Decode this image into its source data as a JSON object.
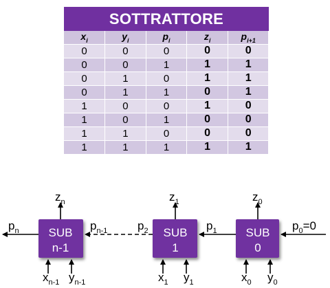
{
  "table": {
    "title": "SOTTRATTORE",
    "headers": [
      {
        "base": "x",
        "sub": "i"
      },
      {
        "base": "y",
        "sub": "i"
      },
      {
        "base": "p",
        "sub": "i"
      },
      {
        "base": "z",
        "sub": "i"
      },
      {
        "base": "p",
        "sub": "i+1"
      }
    ],
    "rows": [
      [
        "0",
        "0",
        "0",
        "0",
        "0"
      ],
      [
        "0",
        "0",
        "1",
        "1",
        "1"
      ],
      [
        "0",
        "1",
        "0",
        "1",
        "1"
      ],
      [
        "0",
        "1",
        "1",
        "0",
        "1"
      ],
      [
        "1",
        "0",
        "0",
        "1",
        "0"
      ],
      [
        "1",
        "0",
        "1",
        "0",
        "0"
      ],
      [
        "1",
        "1",
        "0",
        "0",
        "0"
      ],
      [
        "1",
        "1",
        "1",
        "1",
        "1"
      ]
    ]
  },
  "diagram": {
    "box_color": "#7030a0",
    "blocks": [
      {
        "line1": "SUB",
        "line2": "n-1",
        "z": {
          "base": "z",
          "sub": "n"
        },
        "x": {
          "base": "x",
          "sub": "n-1"
        },
        "y": {
          "base": "y",
          "sub": "n-1"
        }
      },
      {
        "line1": "SUB",
        "line2": "1",
        "z": {
          "base": "z",
          "sub": "1"
        },
        "x": {
          "base": "x",
          "sub": "1"
        },
        "y": {
          "base": "y",
          "sub": "1"
        }
      },
      {
        "line1": "SUB",
        "line2": "0",
        "z": {
          "base": "z",
          "sub": "0"
        },
        "x": {
          "base": "x",
          "sub": "0"
        },
        "y": {
          "base": "y",
          "sub": "0"
        }
      }
    ],
    "borrows": {
      "pn": {
        "base": "p",
        "sub": "n"
      },
      "pn1": {
        "base": "p",
        "sub": "n-1"
      },
      "p2": {
        "base": "p",
        "sub": "2"
      },
      "p1": {
        "base": "p",
        "sub": "1"
      },
      "p0": {
        "base": "p",
        "sub": "0",
        "value": "=0"
      }
    }
  }
}
